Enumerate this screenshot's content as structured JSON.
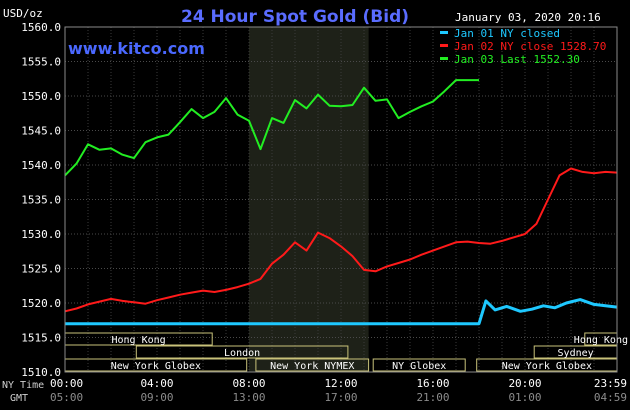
{
  "header": {
    "title": "24 Hour Spot Gold (Bid)",
    "unit": "USD/oz",
    "timestamp": "January 03, 2020 20:16",
    "watermark": "www.kitco.com"
  },
  "legend": [
    {
      "label": "Jan 01 NY closed",
      "color": "#1ec8ff"
    },
    {
      "label": "Jan 02 NY close 1528.70",
      "color": "#ff1a1a"
    },
    {
      "label": "Jan 03 Last 1552.30",
      "color": "#22ee22"
    }
  ],
  "markets": [
    {
      "label": "Hong Kong",
      "row": 0,
      "start": 0,
      "end": 6.4
    },
    {
      "label": "Hong Kong",
      "row": 0,
      "start": 22.6,
      "end": 24
    },
    {
      "label": "London",
      "row": 1,
      "start": 3.1,
      "end": 12.3
    },
    {
      "label": "Sydney",
      "row": 1,
      "start": 20.4,
      "end": 24
    },
    {
      "label": "New York Globex",
      "row": 2,
      "start": 0,
      "end": 7.9
    },
    {
      "label": "New York NYMEX",
      "row": 2,
      "start": 8.3,
      "end": 13.2
    },
    {
      "label": "NY Globex",
      "row": 2,
      "start": 13.4,
      "end": 17.4
    },
    {
      "label": "New York Globex",
      "row": 2,
      "start": 17.9,
      "end": 24
    }
  ],
  "footer": {
    "ny_time_label": "NY Time",
    "gmt_label": "GMT",
    "gmt_ticks": [
      "05:00",
      "09:00",
      "13:00",
      "17:00",
      "21:00",
      "01:00",
      "04:59"
    ]
  },
  "chart_data": {
    "type": "line",
    "ylabel": "USD/oz",
    "ylim": [
      1510,
      1560
    ],
    "yticks": [
      1510,
      1515,
      1520,
      1525,
      1530,
      1535,
      1540,
      1545,
      1550,
      1555,
      1560
    ],
    "xlim": [
      0,
      24
    ],
    "xticks": [
      0,
      4,
      8,
      12,
      16,
      20,
      24
    ],
    "xtick_labels": [
      "00:00",
      "04:00",
      "08:00",
      "12:00",
      "16:00",
      "20:00",
      "23:59"
    ],
    "grid": true,
    "shaded_region_hours": [
      8,
      13.2
    ],
    "series": [
      {
        "name": "Jan 01 NY closed",
        "color": "#1ec8ff",
        "x": [
          0,
          18,
          18,
          18.3,
          18.7,
          19.2,
          19.8,
          20.3,
          20.8,
          21.3,
          21.8,
          22.4,
          23.0,
          23.5,
          24
        ],
        "y": [
          1517,
          1517,
          1517,
          1520.3,
          1519,
          1519.5,
          1518.8,
          1519.1,
          1519.6,
          1519.3,
          1520,
          1520.5,
          1519.8,
          1519.6,
          1519.4
        ]
      },
      {
        "name": "Jan 02 NY close 1528.70",
        "color": "#ff1a1a",
        "x": [
          0,
          0.5,
          1,
          1.5,
          2,
          2.5,
          3,
          3.5,
          4,
          4.5,
          5,
          5.5,
          6,
          6.5,
          7,
          7.5,
          8,
          8.5,
          9,
          9.5,
          10,
          10.5,
          11,
          11.5,
          12,
          12.5,
          13,
          13.5,
          14,
          14.5,
          15,
          15.5,
          16,
          16.5,
          17,
          17.5,
          18,
          18.5,
          19,
          19.5,
          20,
          20.5,
          21,
          21.5,
          22,
          22.5,
          23,
          23.5,
          24
        ],
        "y": [
          1518.8,
          1519.2,
          1519.8,
          1520.2,
          1520.6,
          1520.3,
          1520.1,
          1519.9,
          1520.4,
          1520.8,
          1521.2,
          1521.5,
          1521.8,
          1521.6,
          1521.9,
          1522.3,
          1522.8,
          1523.5,
          1525.7,
          1527.0,
          1528.8,
          1527.6,
          1530.2,
          1529.4,
          1528.2,
          1526.8,
          1524.8,
          1524.6,
          1525.3,
          1525.8,
          1526.3,
          1527.0,
          1527.6,
          1528.2,
          1528.8,
          1528.9,
          1528.7,
          1528.6,
          1529.0,
          1529.5,
          1530.0,
          1531.5,
          1535.0,
          1538.5,
          1539.5,
          1539.0,
          1538.8,
          1539.0,
          1538.9
        ]
      },
      {
        "name": "Jan 03 Last 1552.30",
        "color": "#22ee22",
        "x": [
          0,
          0.5,
          1,
          1.5,
          2,
          2.5,
          3,
          3.5,
          4,
          4.5,
          5,
          5.5,
          6,
          6.5,
          7,
          7.5,
          8,
          8.5,
          9,
          9.5,
          10,
          10.5,
          11,
          11.5,
          12,
          12.5,
          13,
          13.5,
          14,
          14.5,
          15,
          15.5,
          16,
          16.5,
          17,
          17.5,
          18
        ],
        "y": [
          1538.5,
          1540.2,
          1543.0,
          1542.2,
          1542.4,
          1541.5,
          1541.0,
          1543.3,
          1544.0,
          1544.4,
          1546.2,
          1548.1,
          1546.8,
          1547.7,
          1549.7,
          1547.3,
          1546.4,
          1542.3,
          1546.8,
          1546.1,
          1549.4,
          1548.2,
          1550.2,
          1548.6,
          1548.5,
          1548.7,
          1551.2,
          1549.3,
          1549.5,
          1546.8,
          1547.7,
          1548.5,
          1549.2,
          1550.7,
          1552.3,
          1552.3,
          1552.3
        ]
      }
    ]
  }
}
